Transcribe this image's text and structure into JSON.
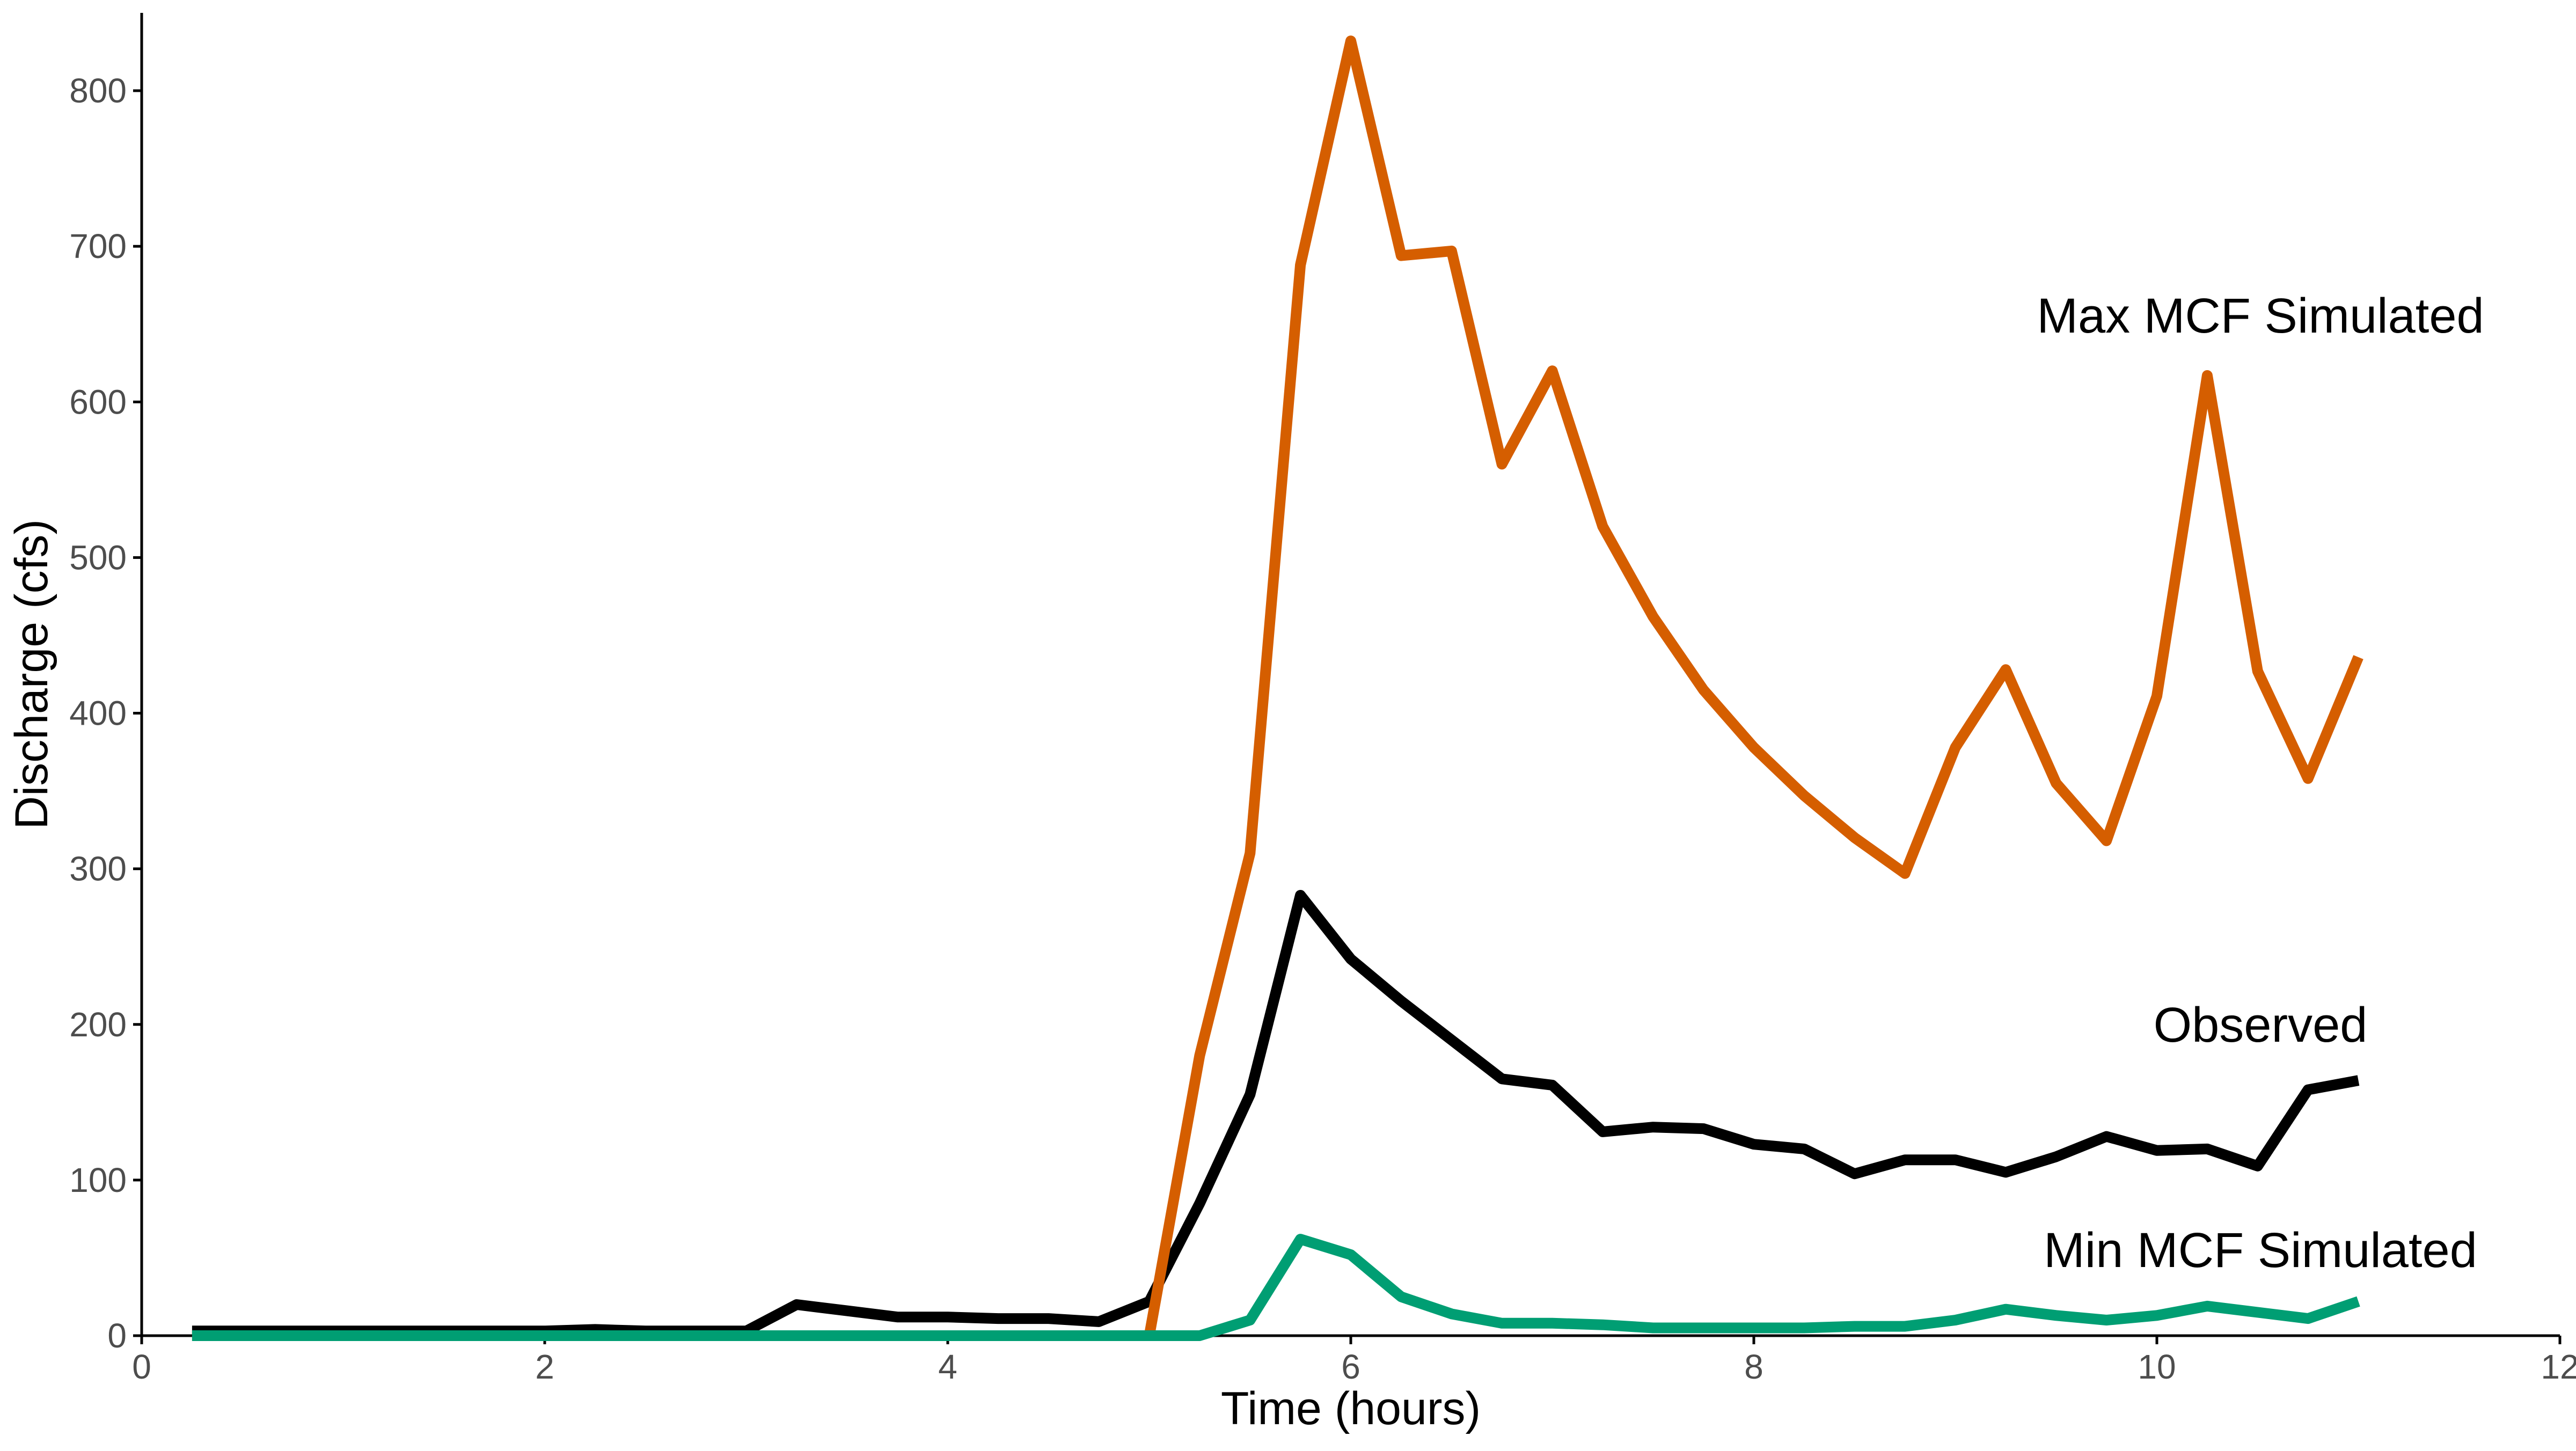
{
  "chart_data": {
    "type": "line",
    "title": "",
    "xlabel": "Time (hours)",
    "ylabel": "Discharge (cfs)",
    "xlim": [
      0,
      12
    ],
    "ylim": [
      0,
      850
    ],
    "xticks": [
      0,
      2,
      4,
      6,
      8,
      10,
      12
    ],
    "yticks": [
      0,
      100,
      200,
      300,
      400,
      500,
      600,
      700,
      800
    ],
    "grid": false,
    "legend": "none (direct labels)",
    "x": [
      0.25,
      0.5,
      0.75,
      1.0,
      1.25,
      1.5,
      1.75,
      2.0,
      2.25,
      2.5,
      2.75,
      3.0,
      3.25,
      3.5,
      3.75,
      4.0,
      4.25,
      4.5,
      4.75,
      5.0,
      5.25,
      5.5,
      5.75,
      6.0,
      6.25,
      6.5,
      6.75,
      7.0,
      7.25,
      7.5,
      7.75,
      8.0,
      8.25,
      8.5,
      8.75,
      9.0,
      9.25,
      9.5,
      9.75,
      10.0,
      10.25,
      10.5,
      10.75,
      11.0
    ],
    "series": [
      {
        "name": "Observed",
        "color": "#000000",
        "values": [
          3,
          3,
          3,
          3,
          3,
          3,
          3,
          3,
          4,
          3,
          3,
          3,
          20,
          16,
          12,
          12,
          11,
          11,
          9,
          22,
          85,
          155,
          283,
          242,
          215,
          190,
          165,
          161,
          131,
          134,
          133,
          123,
          120,
          104,
          113,
          113,
          105,
          115,
          128,
          119,
          120,
          109,
          158,
          164
        ]
      },
      {
        "name": "Max MCF Simulated",
        "color": "#d55e00",
        "values": [
          0,
          0,
          0,
          0,
          0,
          0,
          0,
          0,
          0,
          0,
          0,
          0,
          0,
          0,
          0,
          0,
          0,
          0,
          0,
          0,
          180,
          310,
          688,
          832,
          694,
          697,
          560,
          620,
          520,
          462,
          415,
          378,
          347,
          320,
          297,
          378,
          428,
          355,
          318,
          411,
          617,
          427,
          358,
          436
        ]
      },
      {
        "name": "Min MCF Simulated",
        "color": "#009e73",
        "values": [
          0,
          0,
          0,
          0,
          0,
          0,
          0,
          0,
          0,
          0,
          0,
          0,
          0,
          0,
          0,
          0,
          0,
          0,
          0,
          0,
          0,
          10,
          62,
          52,
          25,
          14,
          8,
          8,
          7,
          5,
          5,
          5,
          5,
          6,
          6,
          10,
          17,
          13,
          10,
          13,
          19,
          15,
          11,
          22
        ]
      }
    ]
  }
}
